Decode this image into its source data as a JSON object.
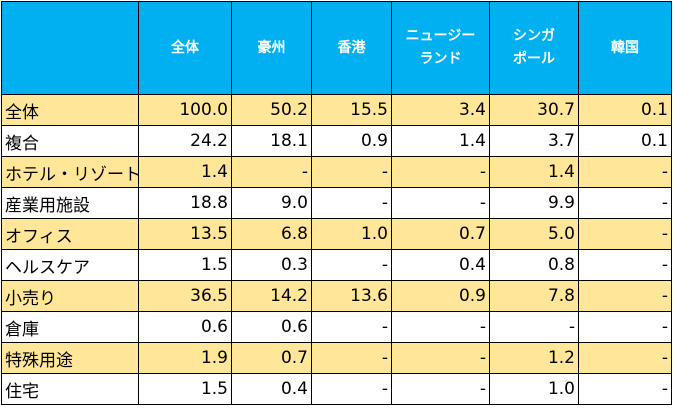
{
  "columns": [
    {
      "key": "corner",
      "lines": [
        ""
      ]
    },
    {
      "key": "total",
      "lines": [
        "全体"
      ]
    },
    {
      "key": "australia",
      "lines": [
        "豪州"
      ]
    },
    {
      "key": "hongkong",
      "lines": [
        "香港"
      ]
    },
    {
      "key": "newzealand",
      "lines": [
        "ニュージー",
        "ランド"
      ]
    },
    {
      "key": "singapore",
      "lines": [
        "シンガ",
        "ポール"
      ]
    },
    {
      "key": "korea",
      "lines": [
        "韓国"
      ]
    }
  ],
  "rows": [
    {
      "label": "全体",
      "values": [
        "100.0",
        "50.2",
        "15.5",
        "3.4",
        "30.7",
        "0.1"
      ]
    },
    {
      "label": "複合",
      "values": [
        "24.2",
        "18.1",
        "0.9",
        "1.4",
        "3.7",
        "0.1"
      ]
    },
    {
      "label": "ホテル・リゾート",
      "values": [
        "1.4",
        "-",
        "-",
        "-",
        "1.4",
        "-"
      ]
    },
    {
      "label": "産業用施設",
      "values": [
        "18.8",
        "9.0",
        "-",
        "-",
        "9.9",
        "-"
      ]
    },
    {
      "label": "オフィス",
      "values": [
        "13.5",
        "6.8",
        "1.0",
        "0.7",
        "5.0",
        "-"
      ]
    },
    {
      "label": "ヘルスケア",
      "values": [
        "1.5",
        "0.3",
        "-",
        "0.4",
        "0.8",
        "-"
      ]
    },
    {
      "label": "小売り",
      "values": [
        "36.5",
        "14.2",
        "13.6",
        "0.9",
        "7.8",
        "-"
      ]
    },
    {
      "label": "倉庫",
      "values": [
        "0.6",
        "0.6",
        "-",
        "-",
        "-",
        "-"
      ]
    },
    {
      "label": "特殊用途",
      "values": [
        "1.9",
        "0.7",
        "-",
        "-",
        "1.2",
        "-"
      ]
    },
    {
      "label": "住宅",
      "values": [
        "1.5",
        "0.4",
        "-",
        "-",
        "1.0",
        "-"
      ]
    }
  ],
  "colors": {
    "header_bg": "#00b0f0",
    "header_text": "#ffffff",
    "shaded_row_bg": "#ffe699",
    "plain_row_bg": "#ffffff",
    "border": "#000000"
  }
}
